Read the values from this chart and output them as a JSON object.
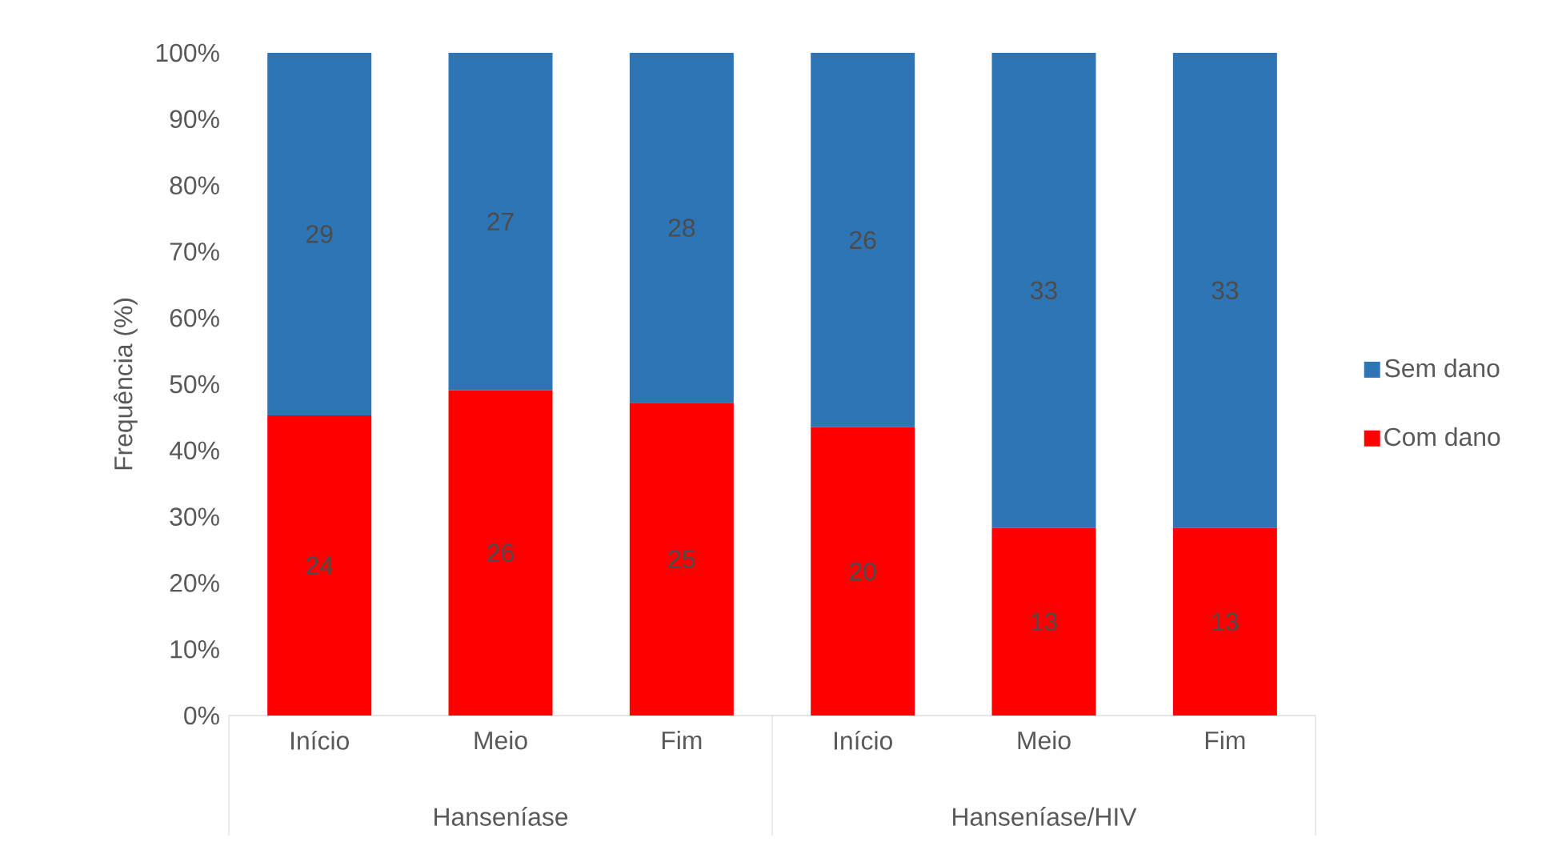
{
  "chart_data": {
    "type": "bar",
    "stacked": true,
    "ylabel": "Frequência (%)",
    "categories": [
      "Início",
      "Meio",
      "Fim",
      "Início",
      "Meio",
      "Fim"
    ],
    "series": [
      {
        "name": "Com dano",
        "color": "#ff0000",
        "values": [
          45.3,
          49.1,
          47.2,
          43.5,
          28.3,
          28.3
        ]
      },
      {
        "name": "Sem dano",
        "color": "#2e75b6",
        "values": [
          54.7,
          50.9,
          52.8,
          56.5,
          71.7,
          71.7
        ]
      }
    ],
    "ylim": [
      0,
      100
    ],
    "yticks": [
      {
        "value": 0,
        "label": "0%"
      },
      {
        "value": 10,
        "label": "10%"
      },
      {
        "value": 20,
        "label": "20%"
      },
      {
        "value": 30,
        "label": "30%"
      },
      {
        "value": 40,
        "label": "40%"
      },
      {
        "value": 50,
        "label": "50%"
      },
      {
        "value": 60,
        "label": "60%"
      },
      {
        "value": 70,
        "label": "70%"
      },
      {
        "value": 80,
        "label": "80%"
      },
      {
        "value": 90,
        "label": "90%"
      },
      {
        "value": 100,
        "label": "100%"
      }
    ],
    "legend": "right",
    "annotations": [
      "Hanseníase",
      "Hanseníase/HIV",
      "24",
      "26",
      "25",
      "20",
      "13",
      "13",
      "29",
      "27",
      "28",
      "26",
      "33",
      "33"
    ]
  }
}
